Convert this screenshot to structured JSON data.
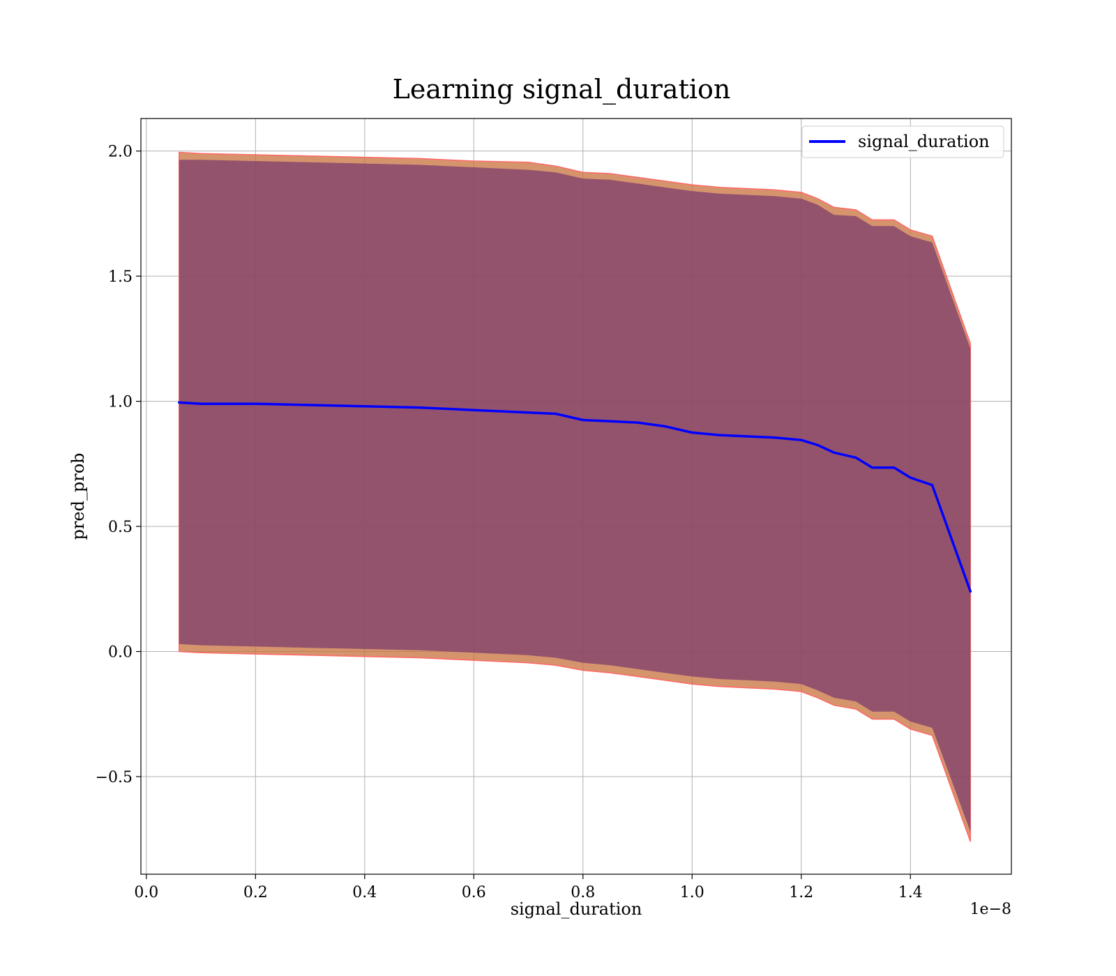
{
  "chart_data": {
    "type": "line",
    "title": "Learning signal_duration",
    "xlabel": "signal_duration",
    "ylabel": "pred_prob",
    "x_offset_label": "1e−8",
    "xlim": [
      -0.01,
      1.585
    ],
    "ylim": [
      -0.89,
      2.13
    ],
    "x_ticks": [
      0.0,
      0.2,
      0.4,
      0.6,
      0.8,
      1.0,
      1.2,
      1.4
    ],
    "x_tick_labels": [
      "0.0",
      "0.2",
      "0.4",
      "0.6",
      "0.8",
      "1.0",
      "1.2",
      "1.4"
    ],
    "y_ticks": [
      -0.5,
      0.0,
      0.5,
      1.0,
      1.5,
      2.0
    ],
    "y_tick_labels": [
      "−0.5",
      "0.0",
      "0.5",
      "1.0",
      "1.5",
      "2.0"
    ],
    "grid": true,
    "legend_position": "top-right",
    "colors": {
      "line": "#0000ff",
      "outer_band": "#c8703c",
      "outer_band_edge": "#ff6666",
      "inner_band": "#7a3a6e"
    },
    "series": [
      {
        "name": "signal_duration",
        "x": [
          0.06,
          0.1,
          0.2,
          0.3,
          0.4,
          0.5,
          0.6,
          0.7,
          0.75,
          0.8,
          0.85,
          0.9,
          0.95,
          1.0,
          1.05,
          1.1,
          1.15,
          1.2,
          1.23,
          1.26,
          1.3,
          1.33,
          1.37,
          1.4,
          1.44,
          1.51
        ],
        "mean": [
          0.995,
          0.99,
          0.99,
          0.985,
          0.98,
          0.975,
          0.965,
          0.955,
          0.95,
          0.925,
          0.92,
          0.915,
          0.9,
          0.875,
          0.865,
          0.86,
          0.855,
          0.845,
          0.825,
          0.795,
          0.775,
          0.735,
          0.735,
          0.695,
          0.665,
          0.24
        ],
        "upper_outer": [
          1.995,
          1.99,
          1.985,
          1.98,
          1.975,
          1.97,
          1.96,
          1.955,
          1.94,
          1.915,
          1.91,
          1.895,
          1.88,
          1.865,
          1.855,
          1.85,
          1.845,
          1.835,
          1.81,
          1.775,
          1.765,
          1.725,
          1.725,
          1.685,
          1.66,
          1.23
        ],
        "upper_inner": [
          1.965,
          1.965,
          1.96,
          1.955,
          1.95,
          1.945,
          1.935,
          1.925,
          1.915,
          1.89,
          1.885,
          1.87,
          1.855,
          1.84,
          1.83,
          1.825,
          1.82,
          1.81,
          1.785,
          1.745,
          1.74,
          1.7,
          1.7,
          1.66,
          1.635,
          1.21
        ],
        "lower_inner": [
          0.03,
          0.025,
          0.02,
          0.015,
          0.01,
          0.005,
          -0.005,
          -0.015,
          -0.025,
          -0.045,
          -0.055,
          -0.07,
          -0.085,
          -0.1,
          -0.11,
          -0.115,
          -0.12,
          -0.13,
          -0.155,
          -0.185,
          -0.2,
          -0.24,
          -0.24,
          -0.28,
          -0.305,
          -0.72
        ],
        "lower_outer": [
          0.0,
          -0.005,
          -0.01,
          -0.015,
          -0.02,
          -0.025,
          -0.035,
          -0.045,
          -0.055,
          -0.075,
          -0.085,
          -0.1,
          -0.115,
          -0.13,
          -0.14,
          -0.145,
          -0.15,
          -0.16,
          -0.185,
          -0.215,
          -0.23,
          -0.27,
          -0.27,
          -0.31,
          -0.335,
          -0.76
        ]
      }
    ]
  }
}
